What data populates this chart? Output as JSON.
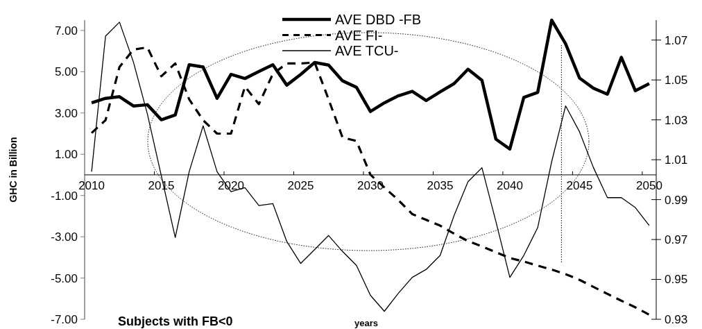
{
  "chart_data": {
    "type": "line",
    "xlabel": "years",
    "ylabel": "GHC in Billion",
    "annotations": [
      "Subjects with FB<0"
    ],
    "x": [
      2010,
      2011,
      2012,
      2013,
      2014,
      2015,
      2016,
      2017,
      2018,
      2019,
      2020,
      2021,
      2022,
      2023,
      2024,
      2025,
      2026,
      2027,
      2028,
      2029,
      2030,
      2031,
      2032,
      2033,
      2034,
      2035,
      2036,
      2037,
      2038,
      2039,
      2040,
      2041,
      2042,
      2043,
      2044,
      2045,
      2046,
      2047,
      2048,
      2049,
      2050
    ],
    "series": [
      {
        "name": "AVE DBD -FB",
        "color": "#000000",
        "line_style": "solid",
        "values": [
          3.49,
          3.71,
          3.79,
          3.34,
          3.4,
          2.67,
          2.9,
          5.34,
          5.23,
          3.71,
          4.87,
          4.67,
          5.01,
          5.34,
          4.35,
          4.87,
          5.45,
          5.32,
          4.56,
          4.24,
          3.07,
          3.49,
          3.83,
          4.05,
          3.6,
          4.02,
          4.42,
          5.12,
          4.58,
          1.73,
          1.25,
          3.75,
          4.0,
          7.5,
          6.35,
          4.69,
          4.2,
          3.91,
          5.7,
          4.08,
          4.42
        ]
      },
      {
        "name": "AVE FI-",
        "color": "#000000",
        "line_style": "dashed",
        "values": [
          2.03,
          2.65,
          5.23,
          6.07,
          6.18,
          4.78,
          5.4,
          3.66,
          2.65,
          2.0,
          2.0,
          4.28,
          3.43,
          4.89,
          5.4,
          5.4,
          5.45,
          3.66,
          1.81,
          1.64,
          0.01,
          -0.61,
          -1.22,
          -1.9,
          -2.18,
          -2.46,
          -2.85,
          -3.21,
          -3.47,
          -3.75,
          -4.03,
          -4.2,
          -4.4,
          -4.59,
          -4.81,
          -5.09,
          -5.43,
          -5.77,
          -6.1,
          -6.42,
          -6.78
        ]
      },
      {
        "name": "AVE TCU-",
        "color": "#000000",
        "line_style": "solid",
        "axis": "y2",
        "values": [
          1.004,
          1.072,
          1.079,
          1.059,
          1.033,
          1.002,
          0.971,
          1.004,
          1.027,
          1.004,
          0.994,
          0.996,
          0.987,
          0.988,
          0.969,
          0.958,
          0.965,
          0.972,
          0.964,
          0.957,
          0.942,
          0.934,
          0.943,
          0.951,
          0.955,
          0.962,
          0.982,
          0.999,
          1.006,
          0.979,
          0.951,
          0.962,
          0.976,
          1.009,
          1.037,
          1.024,
          1.006,
          0.991,
          0.991,
          0.986,
          0.977
        ]
      }
    ],
    "xlim": [
      2009.5,
      2050.5
    ],
    "xticks": [
      2010,
      {
        "value": 2014.5,
        "label": null
      },
      2015,
      {
        "value": 2019.5,
        "label": null
      },
      2020,
      {
        "value": 2024.5,
        "label": null
      },
      2025,
      {
        "value": 2029.5,
        "label": null
      },
      2030,
      {
        "value": 2034.5,
        "label": null
      },
      2035,
      {
        "value": 2039.5,
        "label": null
      },
      2040,
      {
        "value": 2044.5,
        "label": null
      },
      2045,
      {
        "value": 2049.5,
        "label": null
      },
      2050
    ],
    "ylim": [
      -7,
      7.5
    ],
    "yticks": [
      {
        "value": 7,
        "label": "7.00"
      },
      {
        "value": 5,
        "label": "5.00"
      },
      {
        "value": 3,
        "label": "3.00"
      },
      {
        "value": 1,
        "label": "1.00"
      },
      {
        "value": -1,
        "label": "-1.00"
      },
      {
        "value": -3,
        "label": "-3.00"
      },
      {
        "value": -5,
        "label": "-5.00"
      },
      {
        "value": -7,
        "label": "-7.00"
      }
    ],
    "y2lim": [
      0.93,
      1.08
    ],
    "y2ticks": [
      0.93,
      0.95,
      0.97,
      0.99,
      1.01,
      1.03,
      1.05,
      1.07
    ],
    "ref_lines": [
      {
        "axis": "x",
        "value": 2043.7,
        "color": "#000000",
        "line_style": "dotted"
      }
    ],
    "grid": false,
    "legend": "top",
    "marker": "none"
  }
}
